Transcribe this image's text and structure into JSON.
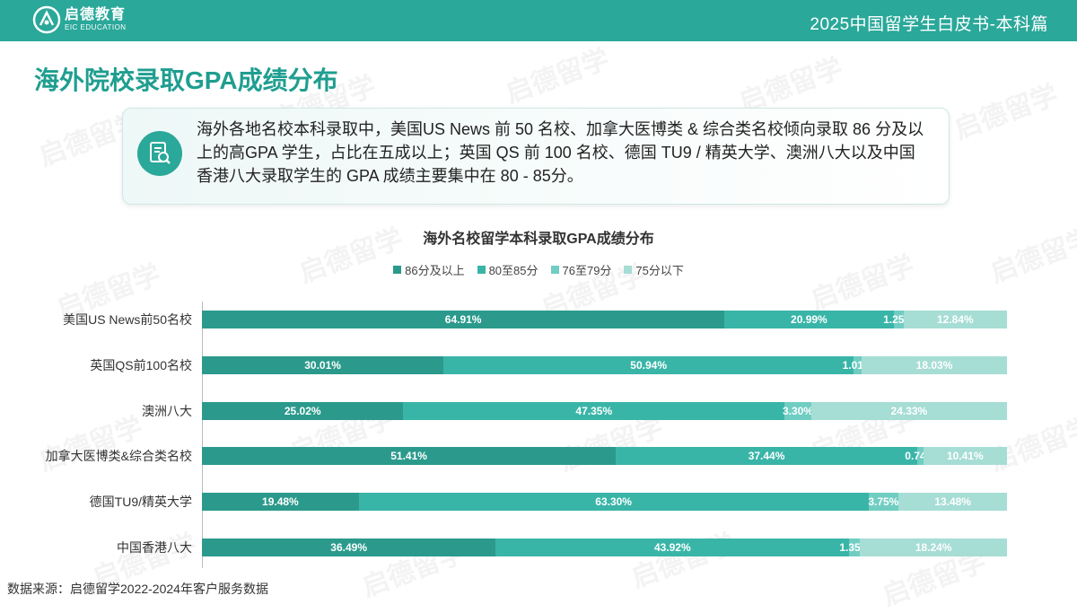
{
  "header": {
    "logo_cn": "启德教育",
    "logo_en": "EIC EDUCATION",
    "title": "2025中国留学生白皮书-本科篇"
  },
  "page_title": "海外院校录取GPA成绩分布",
  "summary": {
    "icon": "document-search-icon",
    "text": "海外各地名校本科录取中，美国US News 前 50 名校、加拿大医博类 & 综合类名校倾向录取 86 分及以上的高GPA 学生，占比在五成以上；英国 QS 前 100 名校、德国 TU9 / 精英大学、澳洲八大以及中国香港八大录取学生的 GPA 成绩主要集中在 80 - 85分。"
  },
  "watermark": "启德留学",
  "source": "数据来源：启德留学2022-2024年客户服务数据",
  "chart_data": {
    "type": "bar",
    "orientation": "horizontal",
    "stacked": true,
    "percent_stacked": true,
    "title": "海外名校留学本科录取GPA成绩分布",
    "legend_position": "top",
    "categories": [
      "美国US News前50名校",
      "英国QS前100名校",
      "澳洲八大",
      "加拿大医博类&综合类名校",
      "德国TU9/精英大学",
      "中国香港八大"
    ],
    "series": [
      {
        "name": "86分及以上",
        "color": "#2b9a8c",
        "values": [
          64.91,
          30.01,
          25.02,
          51.41,
          19.48,
          36.49
        ],
        "labels": [
          "64.91%",
          "30.01%",
          "25.02%",
          "51.41%",
          "19.48%",
          "36.49%"
        ]
      },
      {
        "name": "80至85分",
        "color": "#39b5a8",
        "values": [
          20.99,
          50.94,
          47.35,
          37.44,
          63.3,
          43.92
        ],
        "labels": [
          "20.99%",
          "50.94%",
          "47.35%",
          "37.44%",
          "63.30%",
          "43.92%"
        ]
      },
      {
        "name": "76至79分",
        "color": "#70cdc2",
        "values": [
          1.25,
          1.01,
          3.3,
          0.74,
          3.75,
          1.35
        ],
        "labels": [
          "1.25%",
          "1.01%",
          "3.30%",
          "0.74%",
          "3.75%",
          "1.35%"
        ]
      },
      {
        "name": "75分以下",
        "color": "#a6ddd5",
        "values": [
          12.84,
          18.03,
          24.33,
          10.41,
          13.48,
          18.24
        ],
        "labels": [
          "12.84%",
          "18.03%",
          "24.33%",
          "10.41%",
          "13.48%",
          "18.24%"
        ]
      }
    ],
    "xlim": [
      0,
      100
    ],
    "grid": false
  }
}
